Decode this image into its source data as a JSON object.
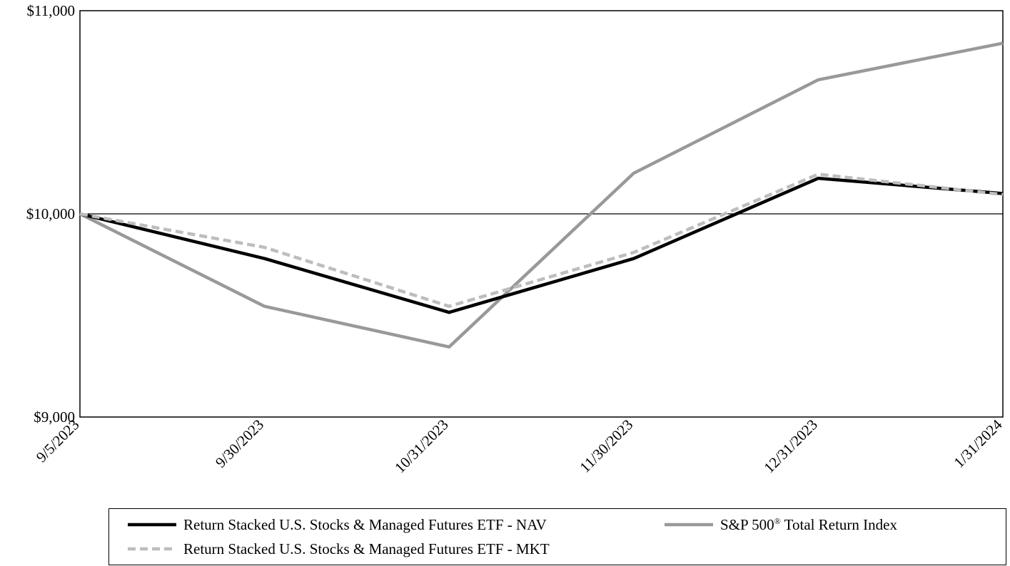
{
  "chart_data": {
    "type": "line",
    "x": [
      "9/5/2023",
      "9/30/2023",
      "10/31/2023",
      "11/30/2023",
      "12/31/2023",
      "1/31/2024"
    ],
    "ylim": [
      9000,
      11000
    ],
    "yticks": [
      9000,
      10000,
      11000
    ],
    "ytick_labels": [
      "$9,000",
      "$10,000",
      "$11,000"
    ],
    "reference_line": 10000,
    "grid": false,
    "legend_position": "bottom",
    "series": [
      {
        "name": "Return Stacked U.S. Stocks & Managed Futures ETF - NAV",
        "values": [
          10000,
          9780,
          9515,
          9780,
          10175,
          10100
        ],
        "color": "#000000",
        "style": "solid"
      },
      {
        "name": "Return Stacked U.S. Stocks & Managed Futures ETF - MKT",
        "values": [
          10000,
          9835,
          9545,
          9810,
          10195,
          10095
        ],
        "color": "#bdbdbd",
        "style": "dashed"
      },
      {
        "name_main": "S&P 500",
        "name_sup": "®",
        "name_rest": " Total Return Index",
        "values": [
          10000,
          9545,
          9345,
          10200,
          10660,
          10840
        ],
        "color": "#999999",
        "style": "solid"
      }
    ]
  }
}
